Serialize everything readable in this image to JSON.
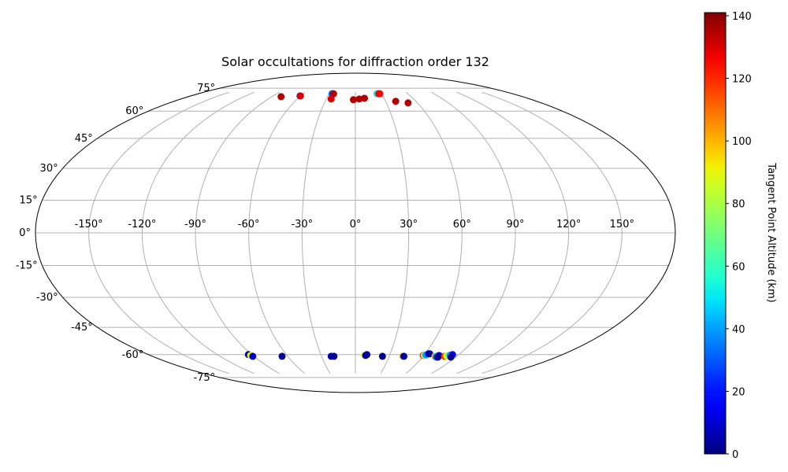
{
  "chart_data": {
    "type": "scatter",
    "title": "Solar occultations for diffraction order 132",
    "projection": "mollweide",
    "grid": true,
    "lon_ticks": [
      -150,
      -120,
      -90,
      -60,
      -30,
      0,
      30,
      60,
      90,
      120,
      150
    ],
    "lat_ticks": [
      -75,
      -60,
      -45,
      -30,
      -15,
      0,
      15,
      30,
      45,
      60,
      75
    ],
    "lon_tick_labels": [
      "-150°",
      "-120°",
      "-90°",
      "-60°",
      "-30°",
      "0°",
      "30°",
      "60°",
      "90°",
      "120°",
      "150°"
    ],
    "lat_tick_labels": [
      "-75°",
      "-60°",
      "-45°",
      "-30°",
      "-15°",
      "0°",
      "15°",
      "30°",
      "45°",
      "60°",
      "75°"
    ],
    "lat_extent": [
      -72,
      72
    ],
    "colorbar": {
      "label": "Tangent Point Altitude (km)",
      "range": [
        0,
        141
      ],
      "ticks": [
        0,
        20,
        40,
        60,
        80,
        100,
        120,
        140
      ],
      "tick_labels": [
        "0",
        "20",
        "40",
        "60",
        "80",
        "100",
        "120",
        "140"
      ],
      "colormap": "jet",
      "placement": "right"
    },
    "points": [
      {
        "lon": -80,
        "lat": 69,
        "alt": 135
      },
      {
        "lon": -60.5,
        "lat": 69.5,
        "alt": 20
      },
      {
        "lon": -60,
        "lat": 69.5,
        "alt": 130
      },
      {
        "lon": -27,
        "lat": 71,
        "alt": 40
      },
      {
        "lon": -26,
        "lat": 71,
        "alt": 30
      },
      {
        "lon": -25,
        "lat": 71,
        "alt": 135
      },
      {
        "lon": -25,
        "lat": 67.5,
        "alt": 130
      },
      {
        "lon": -2,
        "lat": 67,
        "alt": 135
      },
      {
        "lon": 4,
        "lat": 67.5,
        "alt": 135
      },
      {
        "lon": 9.5,
        "lat": 68,
        "alt": 135
      },
      {
        "lon": 25,
        "lat": 71,
        "alt": 40
      },
      {
        "lon": 26,
        "lat": 71,
        "alt": 60
      },
      {
        "lon": 27,
        "lat": 71,
        "alt": 135
      },
      {
        "lon": 28,
        "lat": 71,
        "alt": 125
      },
      {
        "lon": 40,
        "lat": 66,
        "alt": 135
      },
      {
        "lon": 51,
        "lat": 65,
        "alt": 135
      },
      {
        "lon": -93,
        "lat": -60,
        "alt": 5
      },
      {
        "lon": -92,
        "lat": -60.5,
        "alt": 90
      },
      {
        "lon": -91,
        "lat": -61,
        "alt": 10
      },
      {
        "lon": -65,
        "lat": -61,
        "alt": 2
      },
      {
        "lon": -21.5,
        "lat": -61,
        "alt": 5
      },
      {
        "lon": -19,
        "lat": -61,
        "alt": 3
      },
      {
        "lon": 8,
        "lat": -60.5,
        "alt": 90
      },
      {
        "lon": 9,
        "lat": -60.5,
        "alt": 5
      },
      {
        "lon": 10,
        "lat": -60,
        "alt": 3
      },
      {
        "lon": 24,
        "lat": -61,
        "alt": 2
      },
      {
        "lon": 42,
        "lat": -61,
        "alt": 100
      },
      {
        "lon": 43,
        "lat": -61,
        "alt": 5
      },
      {
        "lon": 59.5,
        "lat": -60.5,
        "alt": 120
      },
      {
        "lon": 60.5,
        "lat": -60.5,
        "alt": 80
      },
      {
        "lon": 61.5,
        "lat": -60.2,
        "alt": 40
      },
      {
        "lon": 63,
        "lat": -59.5,
        "alt": 15
      },
      {
        "lon": 64,
        "lat": -59.5,
        "alt": 3
      },
      {
        "lon": 70.5,
        "lat": -61,
        "alt": 100
      },
      {
        "lon": 71.5,
        "lat": -61,
        "alt": 60
      },
      {
        "lon": 72.5,
        "lat": -61.5,
        "alt": 30
      },
      {
        "lon": 73.5,
        "lat": -60.5,
        "alt": 10
      },
      {
        "lon": 74,
        "lat": -61.5,
        "alt": 2
      },
      {
        "lon": 79,
        "lat": -61,
        "alt": 120
      },
      {
        "lon": 80.5,
        "lat": -60.8,
        "alt": 90
      },
      {
        "lon": 82,
        "lat": -60.5,
        "alt": 60
      },
      {
        "lon": 83,
        "lat": -60.3,
        "alt": 40
      },
      {
        "lon": 84.5,
        "lat": -60,
        "alt": 15
      },
      {
        "lon": 85.5,
        "lat": -61.5,
        "alt": 2
      }
    ]
  }
}
